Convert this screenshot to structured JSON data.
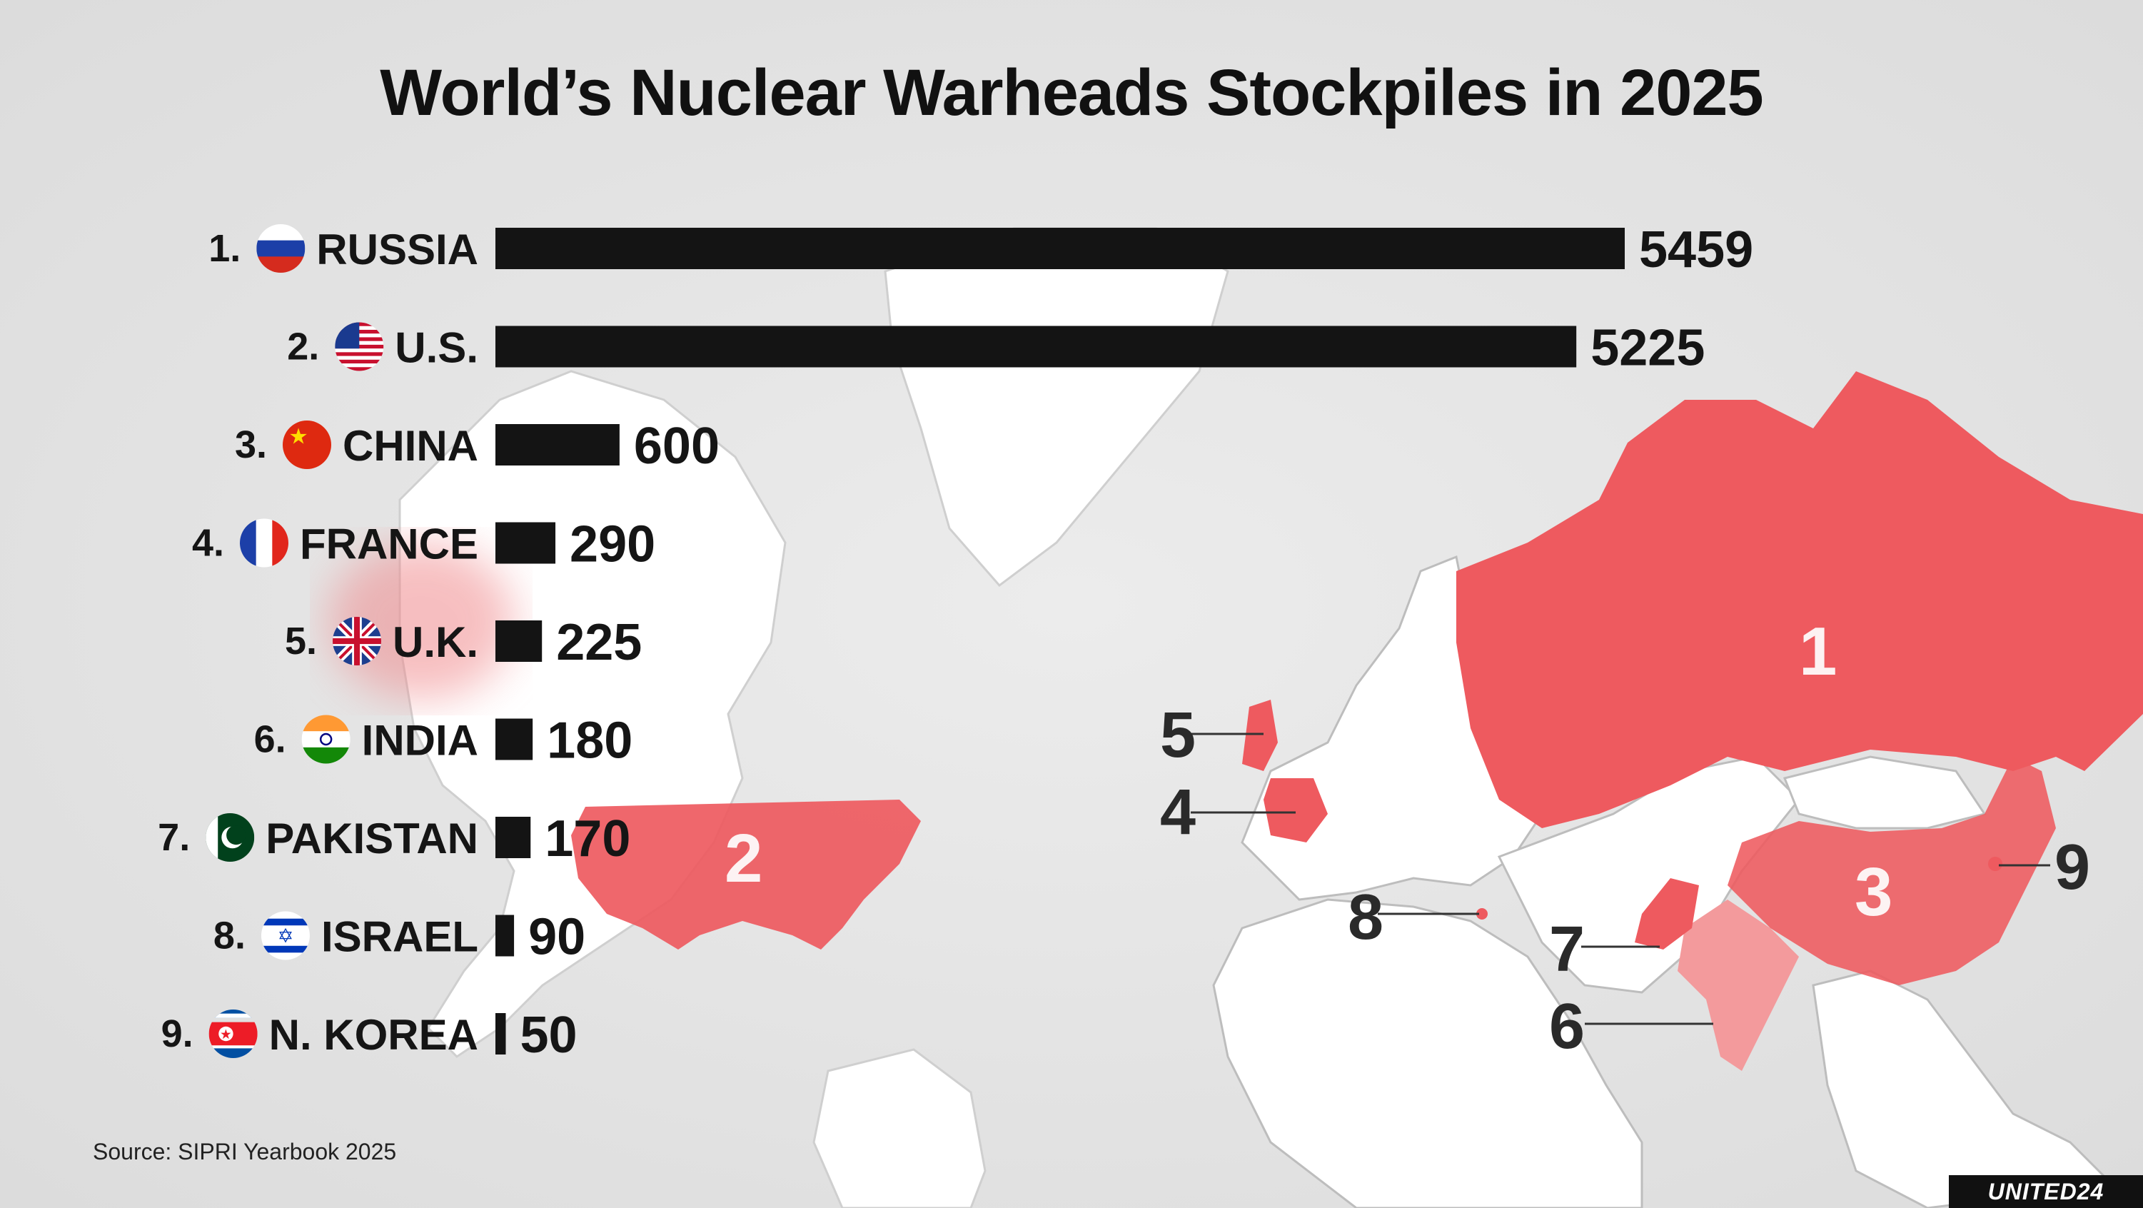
{
  "title": "World’s Nuclear Warheads Stockpiles in 2025",
  "source": "Source: SIPRI Yearbook 2025",
  "brand": "UNITED24",
  "colors": {
    "bar": "#141414",
    "highlight": "#ee5a5f",
    "highlight_light": "#f39a9c",
    "background": "#e4e4e4"
  },
  "chart_data": {
    "type": "bar",
    "orientation": "horizontal",
    "categories": [
      "RUSSIA",
      "U.S.",
      "CHINA",
      "FRANCE",
      "U.K.",
      "INDIA",
      "PAKISTAN",
      "ISRAEL",
      "N. KOREA"
    ],
    "ranks": [
      "1.",
      "2.",
      "3.",
      "4.",
      "5.",
      "6.",
      "7.",
      "8.",
      "9."
    ],
    "flags": [
      "russia-flag",
      "usa-flag",
      "china-flag",
      "france-flag",
      "uk-flag",
      "india-flag",
      "pakistan-flag",
      "israel-flag",
      "north-korea-flag"
    ],
    "values": [
      5459,
      5225,
      600,
      290,
      225,
      180,
      170,
      90,
      50
    ],
    "title": "World’s Nuclear Warheads Stockpiles in 2025",
    "xlabel": "",
    "ylabel": "",
    "grid": false,
    "legend": "none",
    "map_labels": [
      "1",
      "2",
      "3",
      "4",
      "5",
      "6",
      "7",
      "8",
      "9"
    ]
  }
}
